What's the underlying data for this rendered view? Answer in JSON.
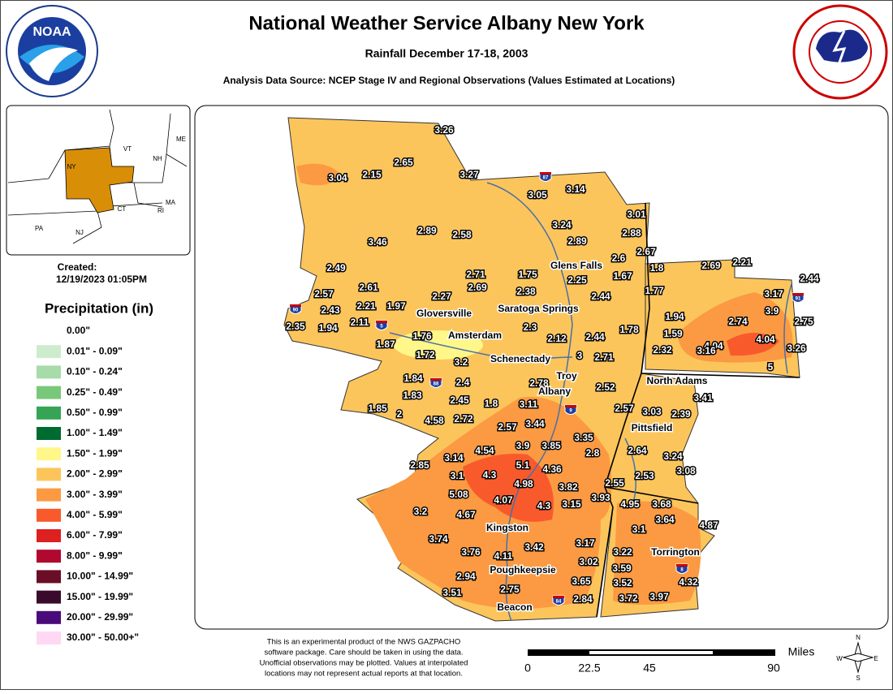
{
  "header": {
    "title": "National Weather Service Albany New York",
    "subtitle": "Rainfall December 17-18, 2003",
    "source": "Analysis Data Source: NCEP Stage IV and Regional Observations (Values Estimated at Locations)",
    "logo_left": "NOAA"
  },
  "inset": {
    "states": [
      "ME",
      "VT",
      "NH",
      "NY",
      "MA",
      "CT",
      "RI",
      "PA",
      "NJ"
    ],
    "created_label": "Created:",
    "created": "12/19/2023 01:05PM"
  },
  "legend": {
    "title": "Precipitation (in)",
    "items": [
      {
        "label": "0.00\"",
        "color": "none"
      },
      {
        "label": "0.01\" - 0.09\"",
        "color": "#cdeccd"
      },
      {
        "label": "0.10\" - 0.24\"",
        "color": "#a7dba7"
      },
      {
        "label": "0.25\" - 0.49\"",
        "color": "#79c879"
      },
      {
        "label": "0.50\" - 0.99\"",
        "color": "#35a555"
      },
      {
        "label": "1.00\" - 1.49\"",
        "color": "#006b30"
      },
      {
        "label": "1.50\" - 1.99\"",
        "color": "#fff78a"
      },
      {
        "label": "2.00\" - 2.99\"",
        "color": "#fcc55c"
      },
      {
        "label": "3.00\" - 3.99\"",
        "color": "#fb9a42"
      },
      {
        "label": "4.00\" - 5.99\"",
        "color": "#f95a2c"
      },
      {
        "label": "6.00\" - 7.99\"",
        "color": "#dd2020"
      },
      {
        "label": "8.00\" - 9.99\"",
        "color": "#b0082e"
      },
      {
        "label": "10.00\" - 14.99\"",
        "color": "#6a0e28"
      },
      {
        "label": "15.00\" - 19.99\"",
        "color": "#3a0a2c"
      },
      {
        "label": "20.00\" - 29.99\"",
        "color": "#4a0a7a"
      },
      {
        "label": "30.00\" - 50.00+\"",
        "color": "#ffd8f4"
      }
    ]
  },
  "map": {
    "stations": [
      "3.26",
      "3.04",
      "2.15",
      "2.65",
      "3.27",
      "3.05",
      "3.14",
      "3.24",
      "2.89",
      "2.58",
      "3.46",
      "2.89",
      "3.01",
      "2.88",
      "2.67",
      "2.6",
      "2.49",
      "2.71",
      "1.75",
      "1.8",
      "2.69",
      "2.21",
      "1.67",
      "2.25",
      "2.61",
      "2.69",
      "2.38",
      "2.44",
      "1.77",
      "2.57",
      "2.27",
      "3.17",
      "2.44",
      "2.21",
      "1.97",
      "2.43",
      "3.9",
      "2.35",
      "1.94",
      "2.11",
      "1.94",
      "2.74",
      "2.75",
      "2.3",
      "1.78",
      "2.44",
      "2.12",
      "1.59",
      "4.04",
      "4.04",
      "1.76",
      "1.87",
      "2.32",
      "3.16",
      "3.26",
      "1.72",
      "3.2",
      "3",
      "2.71",
      "5",
      "1.84",
      "2.4",
      "2.78",
      "1.83",
      "2.52",
      "3.41",
      "2.45",
      "1.8",
      "3.11",
      "1.85",
      "2",
      "4.58",
      "2.72",
      "2.57",
      "3.03",
      "2.39",
      "2.57",
      "3.44",
      "3.35",
      "3.9",
      "3.85",
      "4.54",
      "2.8",
      "2.64",
      "3.14",
      "5.1",
      "4.36",
      "2.85",
      "3.24",
      "3.1",
      "4.3",
      "2.53",
      "3.08",
      "4.98",
      "3.82",
      "2.55",
      "5.08",
      "4.07",
      "3.93",
      "4.95",
      "3.68",
      "4.3",
      "3.15",
      "3.2",
      "4.67",
      "3.64",
      "3.1",
      "4.87",
      "3.74",
      "3.42",
      "3.17",
      "3.76",
      "3.22",
      "4.11",
      "3.02",
      "3.59",
      "2.94",
      "3.65",
      "3.52",
      "4.32",
      "3.51",
      "2.75",
      "3.72",
      "3.97",
      "2.84"
    ],
    "cities": [
      "Glens Falls",
      "Saratoga Springs",
      "Gloversville",
      "Amsterdam",
      "Schenectady",
      "Troy",
      "Albany",
      "North Adams",
      "Pittsfield",
      "Kingston",
      "Torrington",
      "Poughkeepsie",
      "Beacon"
    ],
    "interstates": [
      "87",
      "90",
      "5",
      "88",
      "9",
      "91",
      "8",
      "84"
    ]
  },
  "footer": {
    "disclaimer": [
      "This is an experimental product of the NWS GAZPACHO",
      "software package. Care should be taken in using the data.",
      "Unofficial observations may be plotted. Values at interpolated",
      "locations may not represent actual reports at that location."
    ],
    "scale_unit": "Miles",
    "scale_labels": [
      "0",
      "22.5",
      "45",
      "90"
    ],
    "compass": [
      "N",
      "S",
      "E",
      "W"
    ]
  }
}
